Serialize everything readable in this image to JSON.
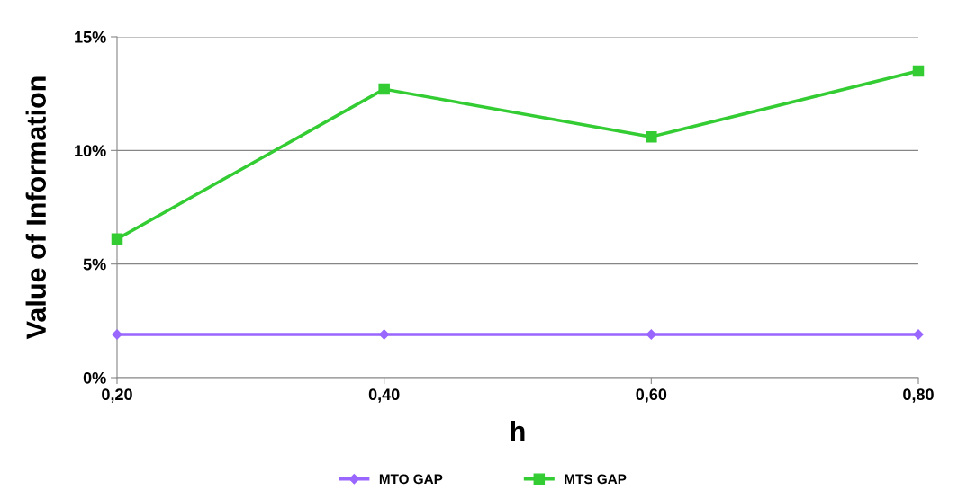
{
  "chart_data": {
    "type": "line",
    "xlabel": "h",
    "ylabel": "Value of Information",
    "categories": [
      "0,20",
      "0,40",
      "0,60",
      "0,80"
    ],
    "series": [
      {
        "name": "MTO GAP",
        "color": "#9966ff",
        "marker": "diamond",
        "values": [
          1.9,
          1.9,
          1.9,
          1.9
        ]
      },
      {
        "name": "MTS GAP",
        "color": "#33cc33",
        "marker": "square",
        "values": [
          6.1,
          12.7,
          10.6,
          13.5
        ]
      }
    ],
    "ylim": [
      0,
      15
    ],
    "yticks": [
      {
        "value": 0,
        "label": "0%"
      },
      {
        "value": 5,
        "label": "5%"
      },
      {
        "value": 10,
        "label": "10%"
      },
      {
        "value": 15,
        "label": "15%"
      }
    ],
    "grid": "y",
    "legend": "bottom",
    "line_style": "solid"
  }
}
